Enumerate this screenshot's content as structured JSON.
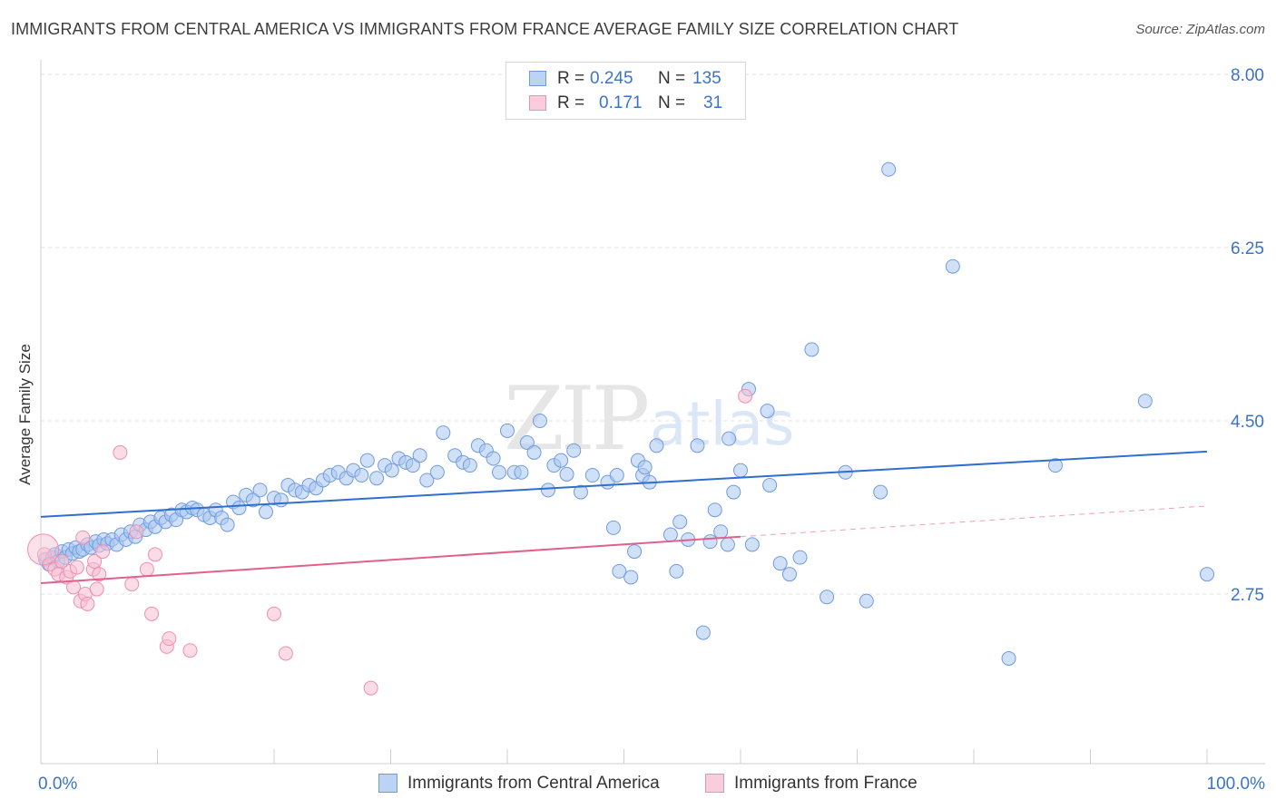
{
  "title": "IMMIGRANTS FROM CENTRAL AMERICA VS IMMIGRANTS FROM FRANCE AVERAGE FAMILY SIZE CORRELATION CHART",
  "source": "Source: ZipAtlas.com",
  "watermark": {
    "zip": "ZIP",
    "atlas": "atlas"
  },
  "legend_top": [
    {
      "r_label": "R =",
      "r_value": "0.245",
      "n_label": "N =",
      "n_value": "135"
    },
    {
      "r_label": "R =",
      "r_value": "0.171",
      "n_label": "N =",
      "n_value": "31"
    }
  ],
  "chart_data": {
    "type": "scatter",
    "title": "IMMIGRANTS FROM CENTRAL AMERICA VS IMMIGRANTS FROM FRANCE AVERAGE FAMILY SIZE CORRELATION CHART",
    "xlabel": "",
    "ylabel": "Average Family Size",
    "x_tick_labels": [
      "0.0%",
      "100.0%"
    ],
    "y_ticks": [
      2.75,
      4.5,
      6.25,
      8.0
    ],
    "y_tick_labels": [
      "2.75",
      "4.50",
      "6.25",
      "8.00"
    ],
    "xlim": [
      0,
      100
    ],
    "ylim": [
      1.25,
      8.25
    ],
    "grid": true,
    "legend_position": "bottom",
    "colors": {
      "blue_fill": "#a9c6f0",
      "blue_stroke": "#6f9be0",
      "blue_line": "#2e6fcf",
      "pink_fill": "#f7bfd1",
      "pink_stroke": "#ee8fb0",
      "pink_line": "#e0608e",
      "tick_label": "#3b73c7"
    },
    "series": [
      {
        "name": "Immigrants from Central America",
        "color": "#a9c6f0",
        "trend": {
          "x": [
            0,
            100
          ],
          "y": [
            3.53,
            4.19
          ]
        },
        "points": [
          [
            0.4,
            3.1
          ],
          [
            0.7,
            3.05
          ],
          [
            1.0,
            3.12
          ],
          [
            1.2,
            3.15
          ],
          [
            1.5,
            3.08
          ],
          [
            1.8,
            3.18
          ],
          [
            2.1,
            3.12
          ],
          [
            2.4,
            3.2
          ],
          [
            2.7,
            3.16
          ],
          [
            3.0,
            3.22
          ],
          [
            3.3,
            3.18
          ],
          [
            3.6,
            3.2
          ],
          [
            4.0,
            3.25
          ],
          [
            4.3,
            3.22
          ],
          [
            4.7,
            3.28
          ],
          [
            5.0,
            3.24
          ],
          [
            5.4,
            3.3
          ],
          [
            5.7,
            3.26
          ],
          [
            6.1,
            3.3
          ],
          [
            6.5,
            3.25
          ],
          [
            6.9,
            3.35
          ],
          [
            7.3,
            3.3
          ],
          [
            7.7,
            3.38
          ],
          [
            8.1,
            3.33
          ],
          [
            8.5,
            3.45
          ],
          [
            9.0,
            3.4
          ],
          [
            9.4,
            3.48
          ],
          [
            9.8,
            3.43
          ],
          [
            10.3,
            3.52
          ],
          [
            10.7,
            3.48
          ],
          [
            11.2,
            3.55
          ],
          [
            11.6,
            3.5
          ],
          [
            12.1,
            3.6
          ],
          [
            12.5,
            3.58
          ],
          [
            13.0,
            3.62
          ],
          [
            13.4,
            3.6
          ],
          [
            14.0,
            3.55
          ],
          [
            14.5,
            3.52
          ],
          [
            15.0,
            3.6
          ],
          [
            15.5,
            3.52
          ],
          [
            16.0,
            3.45
          ],
          [
            16.5,
            3.68
          ],
          [
            17.0,
            3.62
          ],
          [
            17.6,
            3.75
          ],
          [
            18.2,
            3.7
          ],
          [
            18.8,
            3.8
          ],
          [
            19.3,
            3.58
          ],
          [
            20.0,
            3.72
          ],
          [
            20.6,
            3.7
          ],
          [
            21.2,
            3.85
          ],
          [
            21.8,
            3.8
          ],
          [
            22.4,
            3.78
          ],
          [
            23.0,
            3.85
          ],
          [
            23.6,
            3.82
          ],
          [
            24.2,
            3.9
          ],
          [
            24.8,
            3.95
          ],
          [
            25.5,
            3.98
          ],
          [
            26.2,
            3.92
          ],
          [
            26.8,
            4.0
          ],
          [
            27.5,
            3.95
          ],
          [
            28.0,
            4.1
          ],
          [
            28.8,
            3.92
          ],
          [
            29.5,
            4.05
          ],
          [
            30.1,
            4.0
          ],
          [
            30.7,
            4.12
          ],
          [
            31.3,
            4.08
          ],
          [
            31.9,
            4.05
          ],
          [
            32.5,
            4.15
          ],
          [
            33.1,
            3.9
          ],
          [
            34.0,
            3.98
          ],
          [
            34.5,
            4.38
          ],
          [
            35.5,
            4.15
          ],
          [
            36.2,
            4.08
          ],
          [
            36.8,
            4.05
          ],
          [
            37.5,
            4.25
          ],
          [
            38.2,
            4.2
          ],
          [
            38.8,
            4.12
          ],
          [
            39.3,
            3.98
          ],
          [
            40.0,
            4.4
          ],
          [
            40.6,
            3.98
          ],
          [
            41.2,
            3.98
          ],
          [
            41.7,
            4.28
          ],
          [
            42.3,
            4.18
          ],
          [
            42.8,
            4.5
          ],
          [
            43.5,
            3.8
          ],
          [
            44.0,
            4.05
          ],
          [
            44.6,
            4.1
          ],
          [
            45.1,
            3.96
          ],
          [
            45.7,
            4.2
          ],
          [
            46.3,
            3.78
          ],
          [
            47.3,
            3.95
          ],
          [
            48.6,
            3.88
          ],
          [
            49.1,
            3.42
          ],
          [
            49.4,
            3.95
          ],
          [
            49.6,
            2.98
          ],
          [
            50.6,
            2.92
          ],
          [
            50.9,
            3.18
          ],
          [
            51.2,
            4.1
          ],
          [
            51.6,
            3.95
          ],
          [
            51.8,
            4.03
          ],
          [
            52.2,
            3.88
          ],
          [
            52.8,
            4.25
          ],
          [
            54.0,
            3.35
          ],
          [
            54.5,
            2.98
          ],
          [
            54.8,
            3.48
          ],
          [
            55.5,
            3.3
          ],
          [
            56.3,
            4.25
          ],
          [
            56.8,
            2.36
          ],
          [
            57.4,
            3.28
          ],
          [
            57.8,
            3.6
          ],
          [
            58.3,
            3.38
          ],
          [
            58.9,
            3.25
          ],
          [
            59.0,
            4.32
          ],
          [
            59.4,
            3.78
          ],
          [
            60.0,
            4.0
          ],
          [
            60.7,
            4.82
          ],
          [
            61.0,
            3.25
          ],
          [
            62.3,
            4.6
          ],
          [
            62.5,
            3.85
          ],
          [
            63.4,
            3.06
          ],
          [
            64.2,
            2.95
          ],
          [
            65.1,
            3.12
          ],
          [
            66.1,
            5.22
          ],
          [
            67.4,
            2.72
          ],
          [
            69.0,
            3.98
          ],
          [
            70.8,
            2.68
          ],
          [
            72.0,
            3.78
          ],
          [
            72.7,
            7.04
          ],
          [
            78.2,
            6.06
          ],
          [
            83.0,
            2.1
          ],
          [
            87.0,
            4.05
          ],
          [
            94.7,
            4.7
          ],
          [
            100.0,
            2.95
          ]
        ]
      },
      {
        "name": "Immigrants from France",
        "color": "#f7bfd1",
        "trend": {
          "x": [
            0,
            60
          ],
          "y": [
            2.86,
            3.33
          ],
          "dashed_to": {
            "x": 100,
            "y": 3.64
          }
        },
        "points": [
          [
            0.3,
            3.15
          ],
          [
            0.8,
            3.05
          ],
          [
            1.2,
            3.0
          ],
          [
            1.5,
            2.95
          ],
          [
            1.8,
            3.08
          ],
          [
            2.2,
            2.92
          ],
          [
            2.5,
            2.98
          ],
          [
            2.8,
            2.82
          ],
          [
            3.1,
            3.02
          ],
          [
            3.4,
            2.68
          ],
          [
            3.6,
            3.32
          ],
          [
            3.8,
            2.75
          ],
          [
            4.0,
            2.65
          ],
          [
            4.5,
            3.0
          ],
          [
            4.6,
            3.08
          ],
          [
            4.8,
            2.8
          ],
          [
            5.0,
            2.95
          ],
          [
            5.3,
            3.18
          ],
          [
            6.8,
            4.18
          ],
          [
            7.8,
            2.85
          ],
          [
            8.2,
            3.38
          ],
          [
            9.1,
            3.0
          ],
          [
            9.5,
            2.55
          ],
          [
            9.8,
            3.15
          ],
          [
            10.8,
            2.22
          ],
          [
            11.0,
            2.3
          ],
          [
            12.8,
            2.18
          ],
          [
            20.0,
            2.55
          ],
          [
            21.0,
            2.15
          ],
          [
            28.3,
            1.8
          ],
          [
            60.4,
            4.75
          ]
        ]
      }
    ]
  },
  "legend_bottom": [
    {
      "label": "Immigrants from Central America"
    },
    {
      "label": "Immigrants from France"
    }
  ]
}
